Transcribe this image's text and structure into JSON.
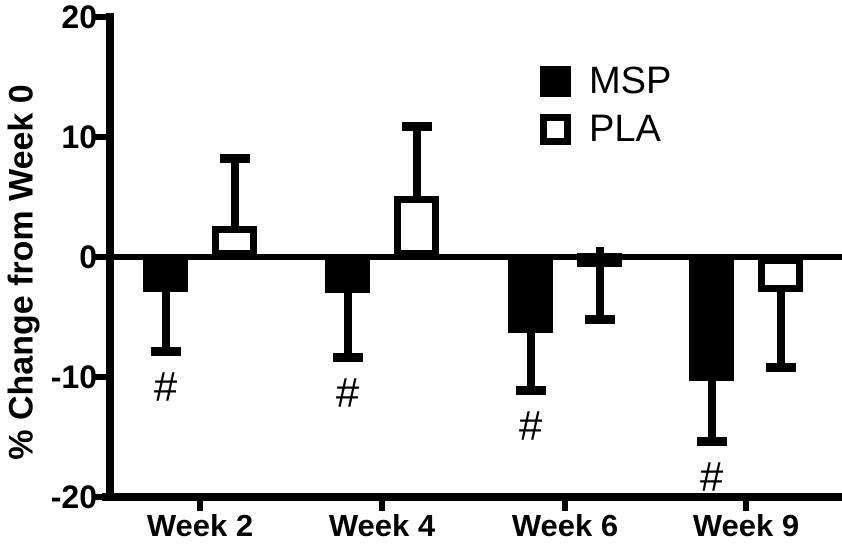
{
  "figure": {
    "background": "#ffffff",
    "foreground": "#000000"
  },
  "chart_data": {
    "type": "bar",
    "title": "",
    "ylabel": "% Change from Week 0",
    "xlabel": "",
    "ylim": [
      -20,
      20
    ],
    "yticks": [
      20,
      10,
      0,
      -10,
      -20
    ],
    "ytick_labels": [
      "20",
      "10",
      "0",
      "-10",
      "-20"
    ],
    "categories": [
      "Week 2",
      "Week 4",
      "Week 6",
      "Week 9"
    ],
    "series": [
      {
        "name": "MSP",
        "fill": "#000000",
        "style": "solid",
        "values": [
          -2.9,
          -3.0,
          -6.3,
          -10.3
        ],
        "error_to": [
          -7.9,
          -8.4,
          -11.1,
          -15.4
        ],
        "annotations": [
          "#",
          "#",
          "#",
          "#"
        ]
      },
      {
        "name": "PLA",
        "fill": "#ffffff",
        "style": "open",
        "values": [
          2.6,
          5.1,
          0.3,
          -2.9
        ],
        "error_to": [
          8.2,
          10.9,
          -5.2,
          -9.2
        ],
        "annotations": [
          "",
          "",
          "",
          ""
        ]
      }
    ],
    "legend": {
      "position": "inside-top-right",
      "entries": [
        "MSP",
        "PLA"
      ]
    },
    "grid": false,
    "error_bars": "one-sided"
  }
}
